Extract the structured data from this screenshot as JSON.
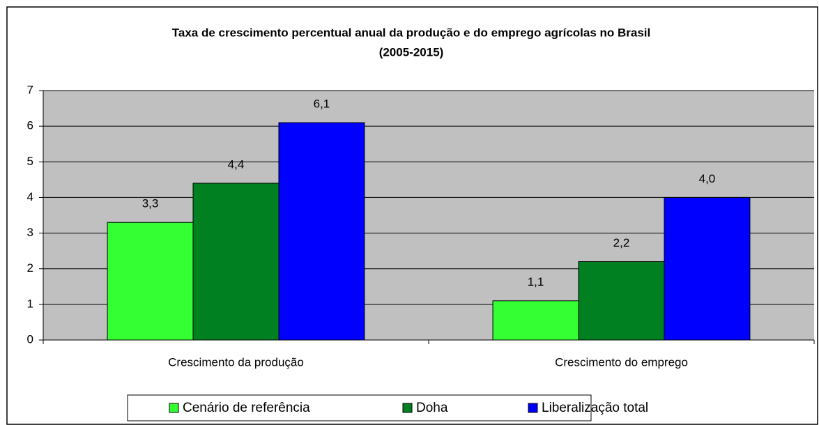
{
  "chart_data": {
    "type": "bar",
    "title": "Taxa de crescimento percentual anual da produção e do emprego agrícolas no Brasil",
    "subtitle": "(2005-2015)",
    "categories": [
      "Crescimento da produção",
      "Crescimento do emprego"
    ],
    "series": [
      {
        "name": "Cenário de referência",
        "color": "#33ff33",
        "values": [
          3.3,
          1.1
        ],
        "value_labels": [
          "3,3",
          "1,1"
        ]
      },
      {
        "name": "Doha",
        "color": "#008020",
        "values": [
          4.4,
          2.2
        ],
        "value_labels": [
          "4,4",
          "2,2"
        ]
      },
      {
        "name": "Liberalização total",
        "color": "#0000ff",
        "values": [
          6.1,
          4.0
        ],
        "value_labels": [
          "6,1",
          "4,0"
        ]
      }
    ],
    "ylim": [
      0,
      7
    ],
    "yticks": [
      0,
      1,
      2,
      3,
      4,
      5,
      6,
      7
    ],
    "grid": true,
    "legend": "bottom"
  }
}
